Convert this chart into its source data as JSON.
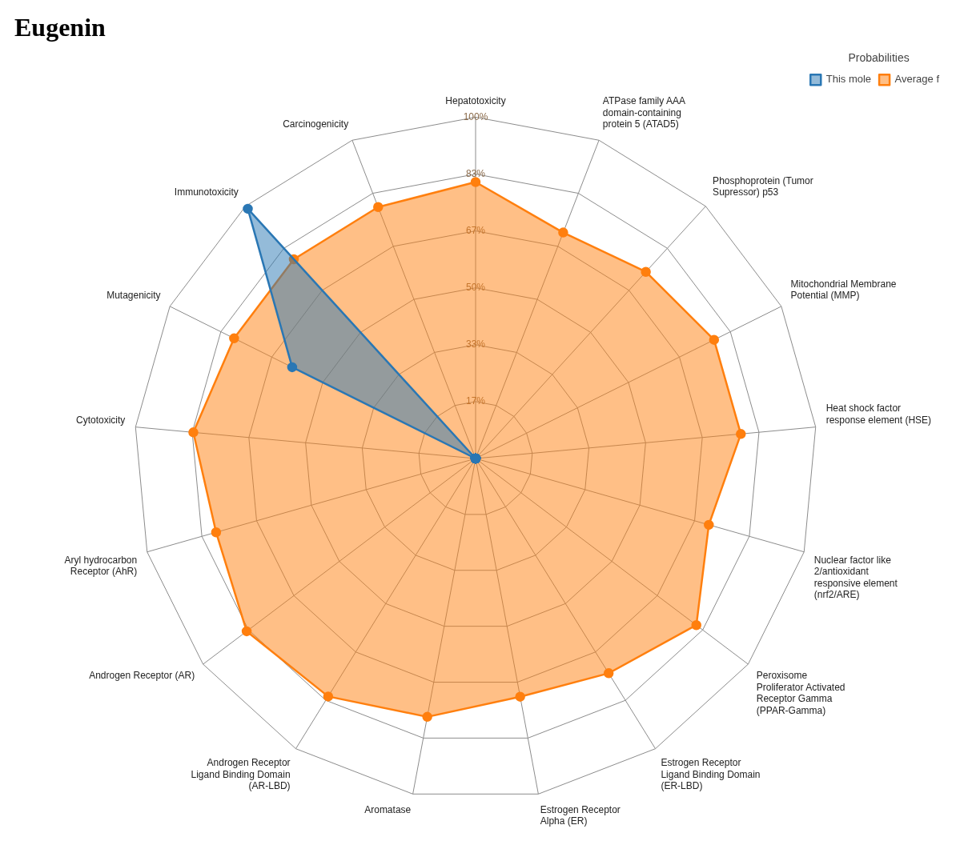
{
  "chart_data": {
    "type": "radar",
    "title": "Eugenin",
    "legend_title": "Probabilities",
    "legend": "top right",
    "grid": true,
    "marker": "circle",
    "categories": [
      "Hepatotoxicity",
      "ATPase family AAA domain-containing protein 5 (ATAD5)",
      "Phosphoprotein (Tumor Supressor) p53",
      "Mitochondrial Membrane Potential (MMP)",
      "Heat shock factor response element (HSE)",
      "Nuclear factor like 2/antioxidant responsive element (nrf2/ARE)",
      "Peroxisome Proliferator Activated Receptor Gamma (PPAR-Gamma)",
      "Estrogen Receptor Ligand Binding Domain (ER-LBD)",
      "Estrogen Receptor Alpha (ER)",
      "Aromatase",
      "Androgen Receptor Ligand Binding Domain (AR-LBD)",
      "Androgen Receptor (AR)",
      "Aryl hydrocarbon Receptor (AhR)",
      "Cytotoxicity",
      "Mutagenicity",
      "Immunotoxicity",
      "Carcinogenicity"
    ],
    "ylim": [
      0,
      100
    ],
    "yticks": [
      {
        "value": 16.67,
        "label": "17%"
      },
      {
        "value": 33.33,
        "label": "33%"
      },
      {
        "value": 50,
        "label": "50%"
      },
      {
        "value": 66.67,
        "label": "67%"
      },
      {
        "value": 83.33,
        "label": "83%"
      },
      {
        "value": 100,
        "label": "100%"
      }
    ],
    "series": [
      {
        "name": "This mole",
        "color": "#2a77b4",
        "values": [
          0,
          0,
          0,
          0,
          0,
          0,
          0,
          0,
          0,
          0,
          0,
          0,
          0,
          0,
          60,
          99,
          0
        ]
      },
      {
        "name": "Average f",
        "color": "#ff7f0e",
        "values": [
          81,
          71,
          74,
          78,
          78,
          71,
          81,
          74,
          71,
          77,
          82,
          84,
          79,
          83,
          79,
          79,
          79
        ]
      }
    ]
  }
}
